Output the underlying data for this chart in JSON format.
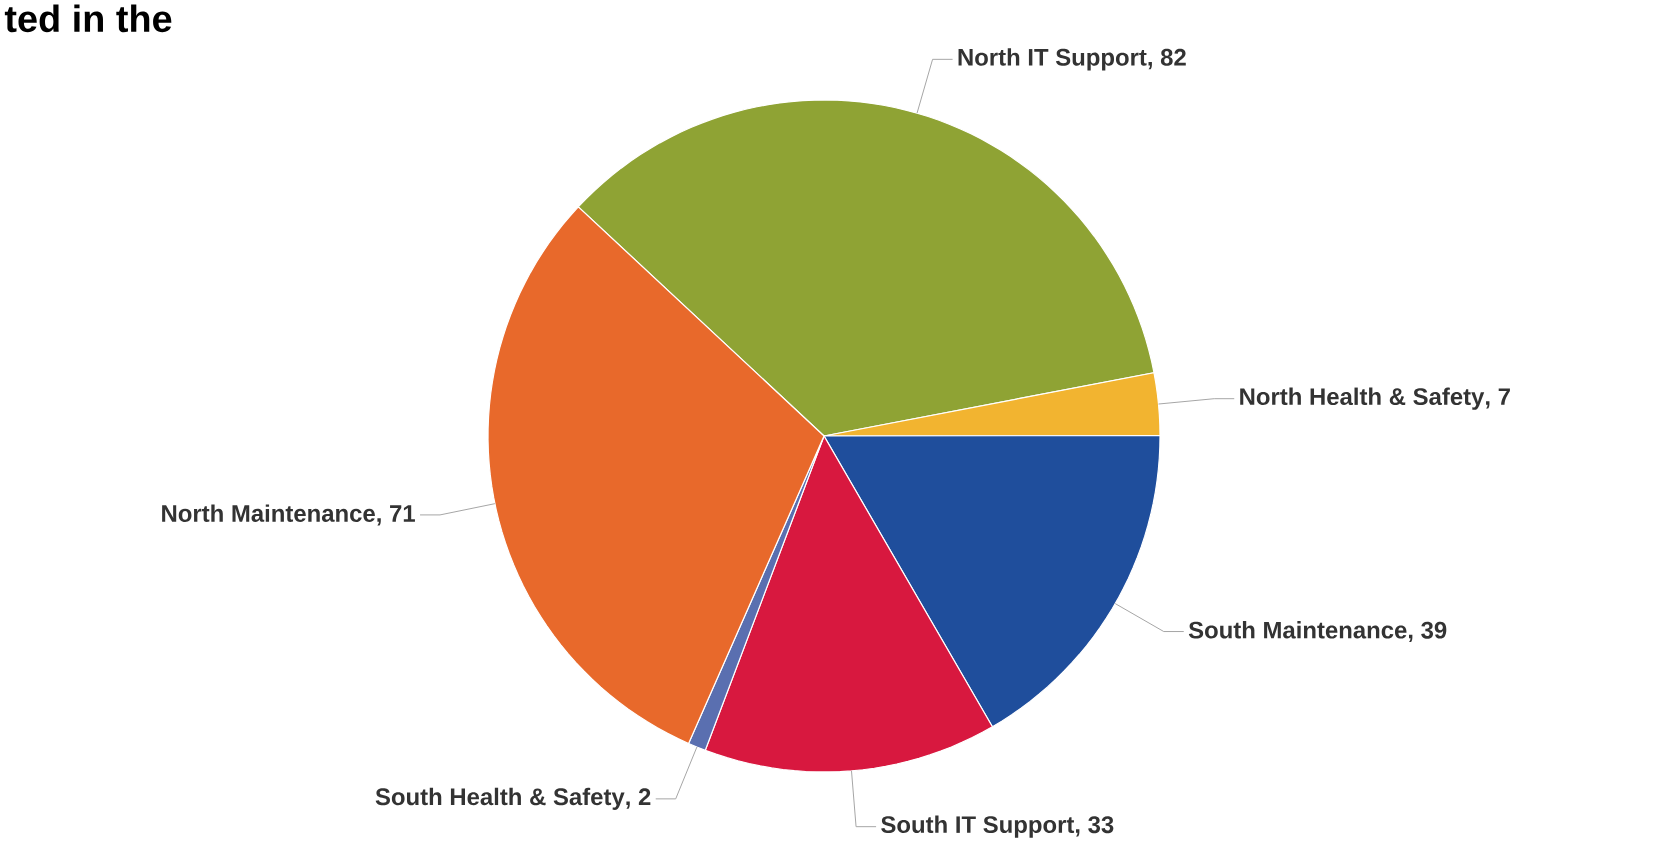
{
  "chart_data": {
    "type": "pie",
    "title": "ted in the",
    "categories": [
      "North IT Support",
      "North Health & Safety",
      "South Maintenance",
      "South IT Support",
      "South Health & Safety",
      "North Maintenance"
    ],
    "values": [
      82,
      7,
      39,
      33,
      2,
      71
    ],
    "value_labels": [
      ", 82",
      ", 7",
      ", 39",
      ", 33",
      ", 2",
      ", 71"
    ],
    "colors": [
      "#8fa334",
      "#f2b430",
      "#1f4e9c",
      "#d8183f",
      "#5a6fb0",
      "#e8692b"
    ]
  }
}
